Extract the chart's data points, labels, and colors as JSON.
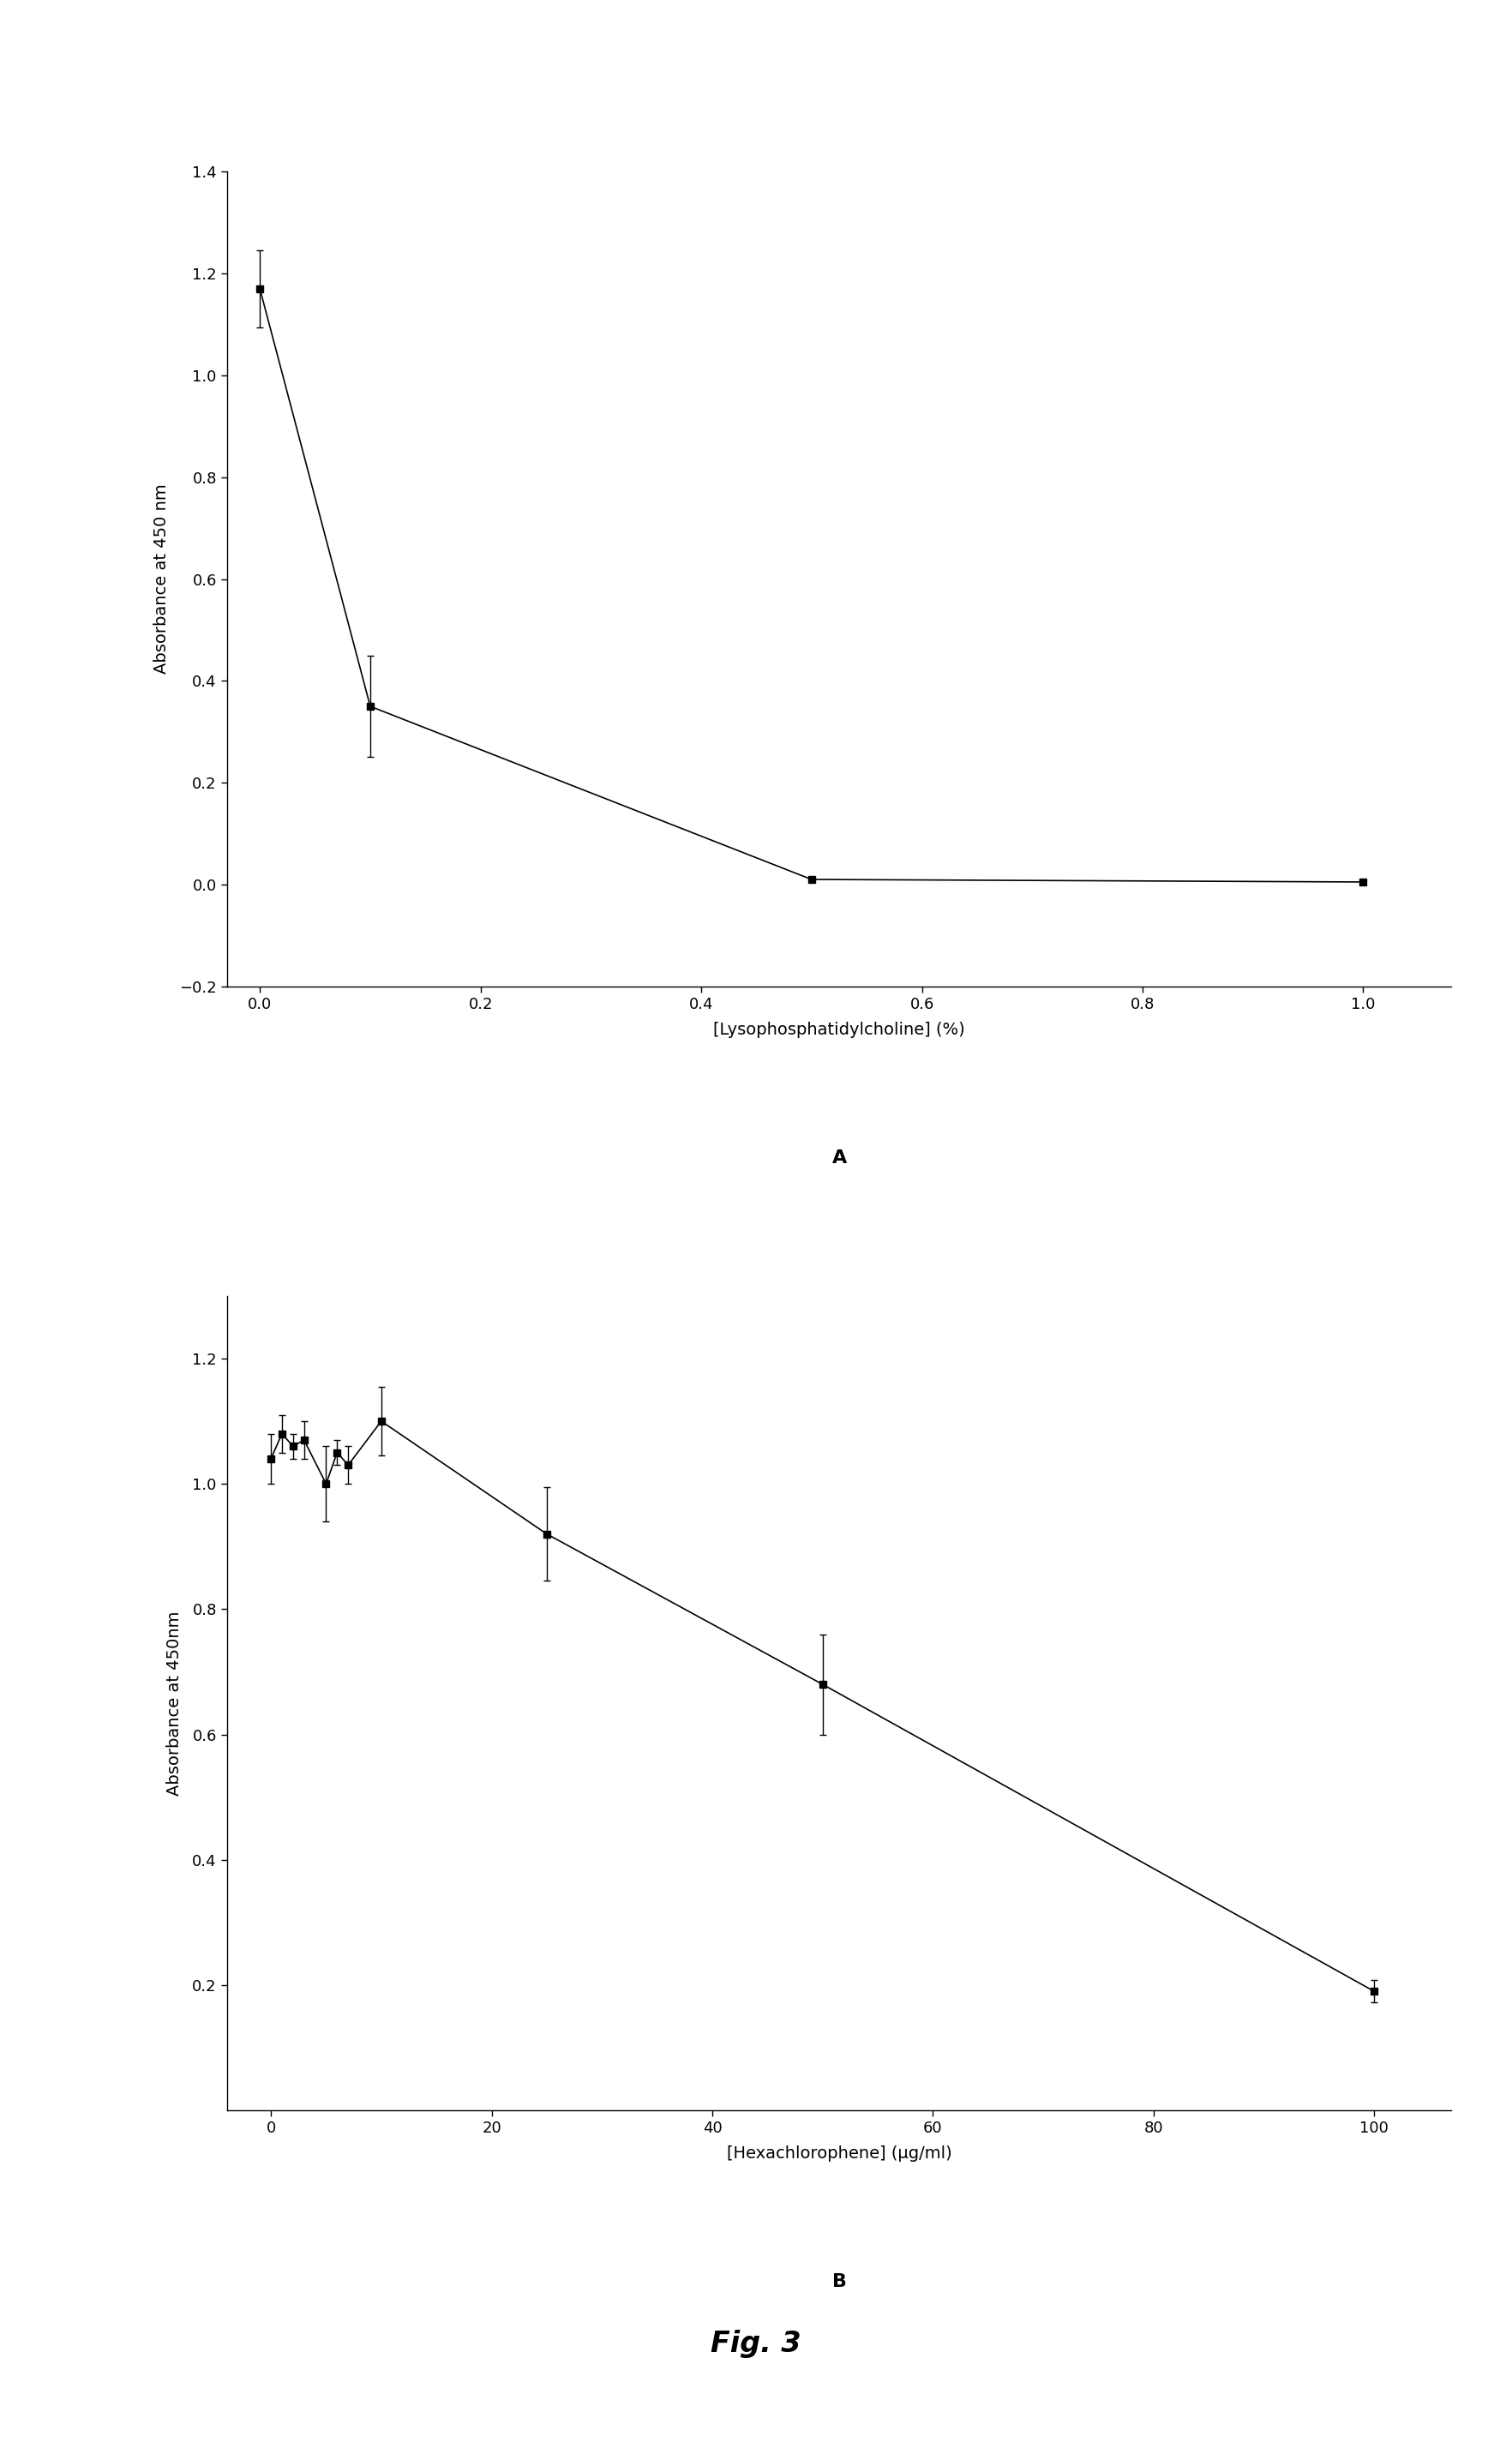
{
  "panel_A": {
    "x": [
      0.0,
      0.1,
      0.5,
      1.0
    ],
    "y": [
      1.17,
      0.35,
      0.01,
      0.005
    ],
    "yerr": [
      0.075,
      0.1,
      0.005,
      0.003
    ],
    "xlabel": "[Lysophosphatidylcholine] (%)",
    "ylabel": "Absorbance at 450 nm",
    "xlim": [
      -0.03,
      1.08
    ],
    "ylim": [
      -0.2,
      1.4
    ],
    "xticks": [
      0.0,
      0.2,
      0.4,
      0.6,
      0.8,
      1.0
    ],
    "yticks": [
      -0.2,
      0.0,
      0.2,
      0.4,
      0.6,
      0.8,
      1.0,
      1.2,
      1.4
    ],
    "label": "A"
  },
  "panel_B": {
    "x_line": [
      0,
      1,
      2,
      3,
      5,
      6,
      7,
      10,
      25,
      50,
      100
    ],
    "y_line": [
      1.04,
      1.08,
      1.06,
      1.07,
      1.0,
      1.05,
      1.03,
      1.1,
      0.92,
      0.68,
      0.19
    ],
    "yerr_line": [
      0.04,
      0.03,
      0.02,
      0.03,
      0.06,
      0.02,
      0.03,
      0.055,
      0.075,
      0.08,
      0.018
    ],
    "xlabel": "[Hexachlorophene] (μg/ml)",
    "ylabel": "Absorbance at 450nm",
    "xlim": [
      -4,
      107
    ],
    "ylim": [
      0.0,
      1.3
    ],
    "xticks": [
      0,
      20,
      40,
      60,
      80,
      100
    ],
    "yticks": [
      0.2,
      0.4,
      0.6,
      0.8,
      1.0,
      1.2
    ],
    "label": "B"
  },
  "fig_label": "Fig. 3",
  "background_color": "#ffffff",
  "marker": "s",
  "marker_color": "black",
  "marker_size": 6,
  "line_color": "black",
  "line_width": 1.2,
  "capsize": 3,
  "elinewidth": 1.0,
  "tick_fontsize": 13,
  "label_fontsize": 14,
  "panel_label_fontsize": 16,
  "fig_label_fontsize": 24
}
